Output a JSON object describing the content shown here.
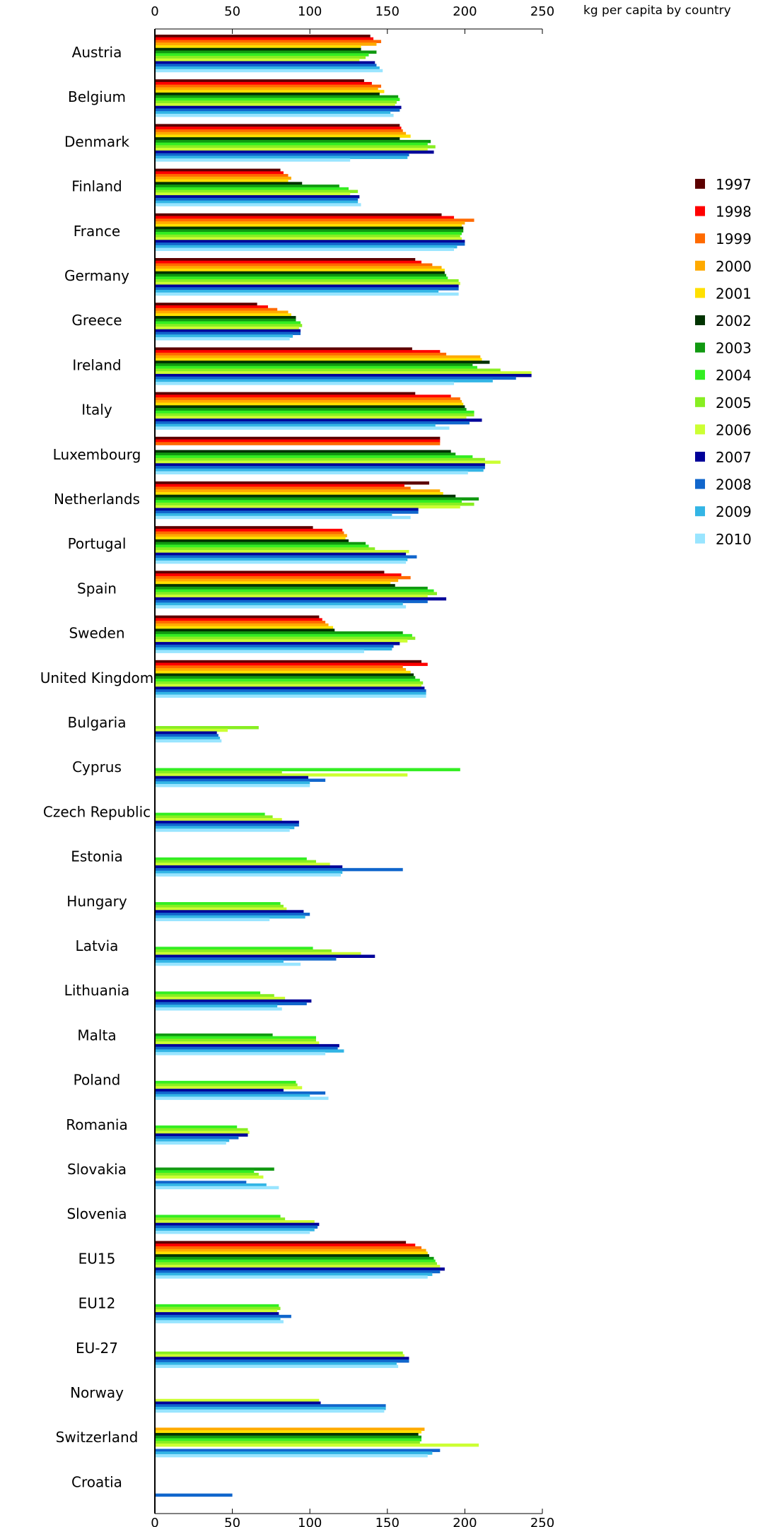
{
  "chart_data": {
    "type": "bar",
    "orientation": "horizontal",
    "title": "kg per capita by country",
    "xlim": [
      0,
      250
    ],
    "x_ticks": [
      "0",
      "50",
      "100",
      "150",
      "200",
      "250"
    ],
    "grid": false,
    "legend_position": "right",
    "categories": [
      "Austria",
      "Belgium",
      "Denmark",
      "Finland",
      "France",
      "Germany",
      "Greece",
      "Ireland",
      "Italy",
      "Luxembourg",
      "Netherlands",
      "Portugal",
      "Spain",
      "Sweden",
      "United Kingdom",
      "Bulgaria",
      "Cyprus",
      "Czech Republic",
      "Estonia",
      "Hungary",
      "Latvia",
      "Lithuania",
      "Malta",
      "Poland",
      "Romania",
      "Slovakia",
      "Slovenia",
      "EU15",
      "EU12",
      "EU-27",
      "Norway",
      "Switzerland",
      "Croatia"
    ],
    "series": [
      {
        "name": "1997",
        "color": "#5c0000",
        "values": [
          139,
          135,
          158,
          81,
          185,
          168,
          66,
          166,
          168,
          184,
          177,
          102,
          148,
          106,
          172,
          null,
          null,
          null,
          null,
          null,
          null,
          null,
          null,
          null,
          null,
          null,
          null,
          162,
          null,
          null,
          null,
          null,
          null
        ]
      },
      {
        "name": "1998",
        "color": "#ff0000",
        "values": [
          141,
          140,
          159,
          83,
          193,
          172,
          73,
          184,
          191,
          184,
          161,
          121,
          159,
          108,
          176,
          null,
          null,
          null,
          null,
          null,
          null,
          null,
          null,
          null,
          null,
          null,
          null,
          168,
          null,
          null,
          null,
          null,
          null
        ]
      },
      {
        "name": "1999",
        "color": "#ff6a00",
        "values": [
          146,
          146,
          160,
          86,
          206,
          179,
          79,
          188,
          197,
          184,
          165,
          122,
          165,
          110,
          160,
          null,
          null,
          null,
          null,
          null,
          null,
          null,
          null,
          null,
          null,
          null,
          null,
          172,
          null,
          null,
          null,
          null,
          null
        ]
      },
      {
        "name": "2000",
        "color": "#ffaa00",
        "values": [
          143,
          144,
          162,
          88,
          200,
          185,
          86,
          210,
          198,
          null,
          184,
          124,
          157,
          112,
          162,
          null,
          null,
          null,
          null,
          null,
          null,
          null,
          null,
          null,
          null,
          null,
          null,
          175,
          null,
          null,
          null,
          174,
          null
        ]
      },
      {
        "name": "2001",
        "color": "#ffe000",
        "values": [
          133,
          148,
          165,
          86,
          198,
          187,
          88,
          211,
          199,
          null,
          186,
          123,
          152,
          115,
          165,
          null,
          null,
          null,
          null,
          null,
          null,
          null,
          null,
          null,
          null,
          null,
          null,
          176,
          null,
          null,
          null,
          172,
          null
        ]
      },
      {
        "name": "2002",
        "color": "#003300",
        "values": [
          133,
          145,
          158,
          95,
          199,
          187,
          91,
          216,
          200,
          191,
          194,
          125,
          155,
          116,
          167,
          null,
          null,
          null,
          null,
          null,
          null,
          null,
          null,
          null,
          null,
          null,
          null,
          177,
          null,
          null,
          null,
          170,
          null
        ]
      },
      {
        "name": "2003",
        "color": "#119911",
        "values": [
          143,
          157,
          178,
          119,
          199,
          188,
          91,
          205,
          201,
          194,
          209,
          136,
          176,
          160,
          168,
          null,
          null,
          null,
          null,
          null,
          null,
          null,
          76,
          null,
          null,
          77,
          null,
          180,
          null,
          null,
          null,
          172,
          null
        ]
      },
      {
        "name": "2004",
        "color": "#33ee22",
        "values": [
          138,
          158,
          176,
          125,
          198,
          189,
          94,
          208,
          206,
          205,
          198,
          138,
          180,
          166,
          171,
          null,
          197,
          71,
          98,
          81,
          102,
          68,
          104,
          91,
          53,
          64,
          81,
          181,
          80,
          null,
          null,
          172,
          null
        ]
      },
      {
        "name": "2005",
        "color": "#88ee22",
        "values": [
          136,
          156,
          181,
          131,
          197,
          196,
          95,
          223,
          206,
          213,
          206,
          142,
          182,
          168,
          173,
          67,
          82,
          76,
          104,
          83,
          114,
          77,
          104,
          92,
          60,
          67,
          84,
          182,
          81,
          160,
          null,
          171,
          null
        ]
      },
      {
        "name": "2006",
        "color": "#ccff33",
        "values": [
          132,
          155,
          176,
          126,
          198,
          197,
          93,
          243,
          201,
          223,
          197,
          164,
          176,
          163,
          172,
          47,
          163,
          82,
          113,
          85,
          133,
          84,
          106,
          95,
          61,
          70,
          103,
          184,
          79,
          161,
          106,
          209,
          null
        ]
      },
      {
        "name": "2007",
        "color": "#000099",
        "values": [
          142,
          159,
          180,
          132,
          200,
          196,
          94,
          243,
          211,
          213,
          170,
          162,
          188,
          158,
          174,
          40,
          99,
          93,
          121,
          96,
          142,
          101,
          119,
          83,
          60,
          null,
          106,
          187,
          80,
          164,
          107,
          null,
          null
        ]
      },
      {
        "name": "2008",
        "color": "#1166cc",
        "values": [
          143,
          158,
          164,
          131,
          200,
          196,
          94,
          233,
          203,
          213,
          170,
          169,
          176,
          154,
          175,
          41,
          110,
          93,
          160,
          100,
          117,
          98,
          118,
          110,
          54,
          59,
          105,
          184,
          88,
          164,
          149,
          184,
          50
        ]
      },
      {
        "name": "2009",
        "color": "#33b5e5",
        "values": [
          145,
          152,
          163,
          131,
          195,
          183,
          89,
          218,
          181,
          212,
          153,
          163,
          160,
          153,
          175,
          42,
          100,
          90,
          121,
          97,
          83,
          79,
          122,
          100,
          48,
          72,
          103,
          179,
          81,
          156,
          149,
          179,
          null
        ]
      },
      {
        "name": "2010",
        "color": "#99e5ff",
        "values": [
          147,
          154,
          126,
          133,
          193,
          196,
          87,
          193,
          190,
          202,
          165,
          162,
          162,
          135,
          175,
          43,
          100,
          87,
          120,
          74,
          94,
          82,
          110,
          112,
          46,
          80,
          100,
          176,
          83,
          157,
          148,
          176,
          null
        ]
      }
    ]
  }
}
